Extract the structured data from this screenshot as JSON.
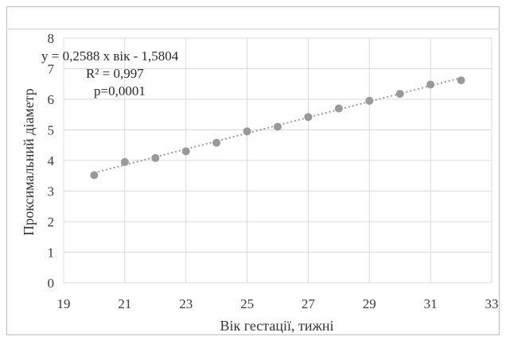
{
  "chart_data": {
    "type": "scatter",
    "title": "",
    "xlabel": "Вік гестації, тижні",
    "ylabel": "Проксимальний діаметр",
    "xlim": [
      19,
      33
    ],
    "ylim": [
      0,
      8
    ],
    "xticks": [
      "19",
      "21",
      "23",
      "25",
      "27",
      "29",
      "31",
      "33"
    ],
    "yticks": [
      "0",
      "1",
      "2",
      "3",
      "4",
      "5",
      "6",
      "7",
      "8"
    ],
    "grid": true,
    "series": [
      {
        "x": [
          20,
          21,
          22,
          23,
          24,
          25,
          26,
          27,
          28,
          29,
          30,
          31,
          32
        ],
        "y": [
          3.52,
          3.95,
          4.08,
          4.3,
          4.58,
          4.95,
          5.1,
          5.42,
          5.7,
          5.95,
          6.18,
          6.48,
          6.62
        ],
        "color": "#999999"
      }
    ],
    "trendline": {
      "slope": 0.2588,
      "intercept": -1.5804,
      "style": "dotted",
      "color": "#9a9a9a"
    },
    "annotations": {
      "equation": "y = 0,2588  x вік - 1,5804",
      "r2": "R² = 0,997",
      "p": "p=0,0001"
    }
  }
}
